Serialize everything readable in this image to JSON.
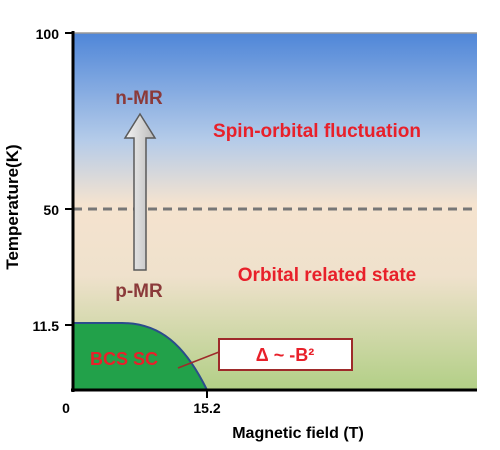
{
  "axes": {
    "y_label": "Temperature(K)",
    "x_label": "Magnetic field (T)",
    "y_ticks": [
      "100",
      "50",
      "11.5",
      "0"
    ],
    "x_ticks": [
      "15.2"
    ]
  },
  "regions": {
    "upper": "Spin-orbital fluctuation",
    "middle": "Orbital related state",
    "superconducting": "BCS SC"
  },
  "arrow": {
    "top_label": "n-MR",
    "bottom_label": "p-MR"
  },
  "callout": {
    "text": "Δ ~ -B²"
  },
  "colors": {
    "region_label": "#e8202a",
    "arrow_label": "#8b3a3a",
    "sc_fill": "#22a14a",
    "sc_edge": "#2c4c8c",
    "dashed_line": "#777777",
    "callout_border": "#9e2a2a"
  }
}
